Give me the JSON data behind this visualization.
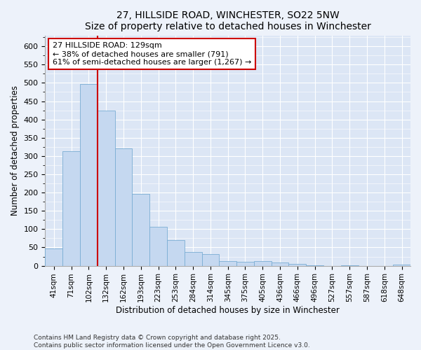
{
  "title_line1": "27, HILLSIDE ROAD, WINCHESTER, SO22 5NW",
  "title_line2": "Size of property relative to detached houses in Winchester",
  "xlabel": "Distribution of detached houses by size in Winchester",
  "ylabel": "Number of detached properties",
  "categories": [
    "41sqm",
    "71sqm",
    "102sqm",
    "132sqm",
    "162sqm",
    "193sqm",
    "223sqm",
    "253sqm",
    "284sqm",
    "314sqm",
    "345sqm",
    "375sqm",
    "405sqm",
    "436sqm",
    "466sqm",
    "496sqm",
    "527sqm",
    "557sqm",
    "587sqm",
    "618sqm",
    "648sqm"
  ],
  "values": [
    47,
    313,
    497,
    425,
    320,
    196,
    106,
    70,
    38,
    32,
    12,
    11,
    12,
    9,
    5,
    2,
    0,
    1,
    0,
    0,
    3
  ],
  "bar_color": "#c5d8f0",
  "bar_edgecolor": "#7aadd4",
  "vline_color": "#cc0000",
  "annotation_text": "27 HILLSIDE ROAD: 129sqm\n← 38% of detached houses are smaller (791)\n61% of semi-detached houses are larger (1,267) →",
  "ylim": [
    0,
    630
  ],
  "yticks": [
    0,
    50,
    100,
    150,
    200,
    250,
    300,
    350,
    400,
    450,
    500,
    550,
    600
  ],
  "plot_bg_color": "#dce6f5",
  "fig_bg_color": "#edf2fa",
  "footer_text": "Contains HM Land Registry data © Crown copyright and database right 2025.\nContains public sector information licensed under the Open Government Licence v3.0."
}
